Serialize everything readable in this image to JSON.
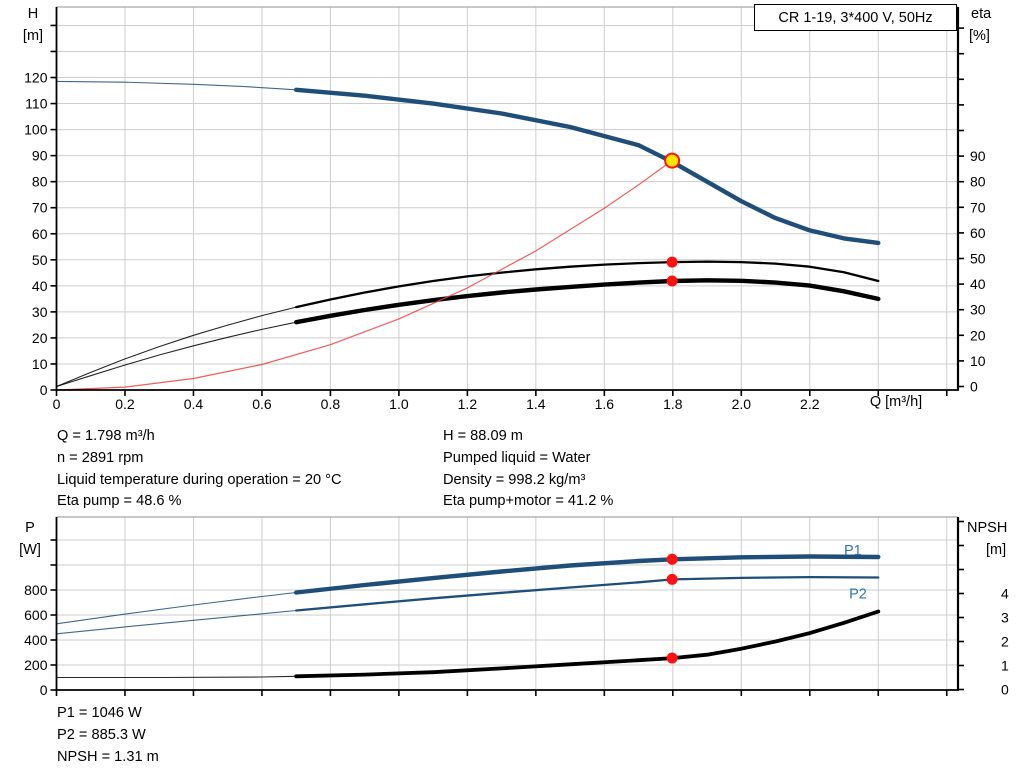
{
  "title_box": {
    "label": "CR 1-19, 3*400 V, 50Hz"
  },
  "operating_point_info": {
    "left": [
      "Q = 1.798 m³/h",
      "n = 2891 rpm",
      "Liquid temperature during operation = 20 °C",
      "Eta pump = 48.6 %"
    ],
    "right": [
      "H = 88.09 m",
      "Pumped liquid = Water",
      "Density = 998.2 kg/m³",
      "Eta pump+motor = 41.2 %"
    ]
  },
  "power_info": [
    "P1 = 1046 W",
    "P2 = 885.3 W",
    "NPSH = 1.31 m"
  ],
  "colors": {
    "curve_blue": "#1F4E79",
    "curve_black": "#000000",
    "system_red": "#EE4040",
    "marker_red": "#FF1111",
    "duty_yellow": "#FFE600",
    "grid": "#CDCDCD",
    "border_gray": "#A6A6A6",
    "label_blue": "#2E74B5"
  },
  "chart_data": [
    {
      "type": "line",
      "title": "CR 1-19, 3*400 V, 50Hz",
      "x_axis": {
        "label": "Q [m³/h]",
        "min": 0,
        "max": 2.63,
        "grid_step": 0.2,
        "tick_labels": [
          "0",
          "0.2",
          "0.4",
          "0.6",
          "0.8",
          "1.0",
          "1.2",
          "1.4",
          "1.6",
          "1.8",
          "2.0",
          "2.2"
        ]
      },
      "y_left": {
        "label": [
          "H",
          "[m]"
        ],
        "min": 0,
        "max": 147,
        "step": 10,
        "label_max": 120
      },
      "y_right": {
        "label": [
          "eta",
          "[%]"
        ],
        "min": 0,
        "max": 147,
        "step": 10,
        "label_max": 90
      },
      "grid": true,
      "series": [
        {
          "name": "head-curve",
          "axis": "left",
          "color_key": "curve_blue",
          "thin_until": 0.7,
          "thick_width": 4.4,
          "points": [
            [
              0,
              118.5
            ],
            [
              0.2,
              118.2
            ],
            [
              0.4,
              117.4
            ],
            [
              0.55,
              116.5
            ],
            [
              0.7,
              115.3
            ],
            [
              0.9,
              113.0
            ],
            [
              1.1,
              110.0
            ],
            [
              1.3,
              106.2
            ],
            [
              1.5,
              101.0
            ],
            [
              1.7,
              94.0
            ],
            [
              1.8,
              87.5
            ],
            [
              1.9,
              80.0
            ],
            [
              2.0,
              72.5
            ],
            [
              2.1,
              66.0
            ],
            [
              2.2,
              61.3
            ],
            [
              2.3,
              58.2
            ],
            [
              2.4,
              56.5
            ]
          ]
        },
        {
          "name": "eta-pump-curve",
          "axis": "right",
          "color_key": "curve_black",
          "thin_until": 0.7,
          "thick_width": 2.3,
          "points": [
            [
              0,
              0
            ],
            [
              0.1,
              5.5
            ],
            [
              0.2,
              10.8
            ],
            [
              0.3,
              15.6
            ],
            [
              0.4,
              20.0
            ],
            [
              0.5,
              24.0
            ],
            [
              0.6,
              27.7
            ],
            [
              0.7,
              31.0
            ],
            [
              0.8,
              34.0
            ],
            [
              0.9,
              36.7
            ],
            [
              1.0,
              39.1
            ],
            [
              1.1,
              41.2
            ],
            [
              1.2,
              43.0
            ],
            [
              1.3,
              44.5
            ],
            [
              1.4,
              45.8
            ],
            [
              1.5,
              46.8
            ],
            [
              1.6,
              47.6
            ],
            [
              1.7,
              48.2
            ],
            [
              1.8,
              48.6
            ],
            [
              1.9,
              48.8
            ],
            [
              2.0,
              48.6
            ],
            [
              2.1,
              48.0
            ],
            [
              2.2,
              46.8
            ],
            [
              2.3,
              44.6
            ],
            [
              2.4,
              41.2
            ]
          ]
        },
        {
          "name": "eta-pump-motor-curve",
          "axis": "right",
          "color_key": "curve_black",
          "thin_until": 0.7,
          "thick_width": 4.4,
          "points": [
            [
              0,
              0
            ],
            [
              0.1,
              4.2
            ],
            [
              0.2,
              8.4
            ],
            [
              0.3,
              12.3
            ],
            [
              0.4,
              15.9
            ],
            [
              0.5,
              19.2
            ],
            [
              0.6,
              22.3
            ],
            [
              0.7,
              25.1
            ],
            [
              0.8,
              27.6
            ],
            [
              0.9,
              29.9
            ],
            [
              1.0,
              31.9
            ],
            [
              1.1,
              33.7
            ],
            [
              1.2,
              35.3
            ],
            [
              1.3,
              36.7
            ],
            [
              1.4,
              37.9
            ],
            [
              1.5,
              38.9
            ],
            [
              1.6,
              39.8
            ],
            [
              1.7,
              40.6
            ],
            [
              1.8,
              41.2
            ],
            [
              1.9,
              41.5
            ],
            [
              2.0,
              41.3
            ],
            [
              2.1,
              40.6
            ],
            [
              2.2,
              39.4
            ],
            [
              2.3,
              37.2
            ],
            [
              2.4,
              34.2
            ]
          ]
        },
        {
          "name": "system-curve",
          "axis": "left",
          "color_key": "system_red",
          "thin_until": 99,
          "thick_width": 1.2,
          "points": [
            [
              0,
              0
            ],
            [
              0.2,
              1.1
            ],
            [
              0.4,
              4.4
            ],
            [
              0.6,
              9.8
            ],
            [
              0.8,
              17.4
            ],
            [
              1.0,
              27.3
            ],
            [
              1.2,
              39.2
            ],
            [
              1.4,
              53.4
            ],
            [
              1.6,
              69.8
            ],
            [
              1.7,
              78.8
            ],
            [
              1.798,
              88.09
            ]
          ]
        }
      ],
      "duty_point": {
        "q": 1.798,
        "h": 88.09
      },
      "markers": [
        {
          "name": "eta-pump-marker",
          "q": 1.798,
          "axis": "right",
          "value": 48.6
        },
        {
          "name": "eta-pump-motor-marker",
          "q": 1.798,
          "axis": "right",
          "value": 41.2
        }
      ]
    },
    {
      "type": "line",
      "x_axis": {
        "label": "",
        "min": 0,
        "max": 2.63,
        "grid_step": 0.2,
        "tick_labels": []
      },
      "y_left": {
        "label": [
          "P",
          "[W]"
        ],
        "min": 0,
        "max": 1380,
        "step": 200,
        "label_max": 800
      },
      "y_right": {
        "label": [
          "NPSH",
          "[m]"
        ],
        "min": 0,
        "max": 7,
        "step": 1,
        "label_max": 4
      },
      "grid": true,
      "series": [
        {
          "name": "p1-curve",
          "axis": "left",
          "color_key": "curve_blue",
          "thin_until": 0.7,
          "thick_width": 4.4,
          "points": [
            [
              0,
              530
            ],
            [
              0.2,
              607
            ],
            [
              0.4,
              680
            ],
            [
              0.6,
              748
            ],
            [
              0.7,
              780
            ],
            [
              0.9,
              840
            ],
            [
              1.1,
              895
            ],
            [
              1.3,
              948
            ],
            [
              1.5,
              996
            ],
            [
              1.7,
              1032
            ],
            [
              1.8,
              1046
            ],
            [
              2.0,
              1062
            ],
            [
              2.2,
              1068
            ],
            [
              2.4,
              1064
            ]
          ]
        },
        {
          "name": "p2-curve",
          "axis": "left",
          "color_key": "curve_blue",
          "thin_until": 0.7,
          "thick_width": 2.3,
          "points": [
            [
              0,
              450
            ],
            [
              0.2,
              505
            ],
            [
              0.4,
              558
            ],
            [
              0.6,
              610
            ],
            [
              0.7,
              636
            ],
            [
              0.9,
              686
            ],
            [
              1.1,
              734
            ],
            [
              1.3,
              778
            ],
            [
              1.5,
              820
            ],
            [
              1.7,
              862
            ],
            [
              1.8,
              885
            ],
            [
              2.0,
              897
            ],
            [
              2.2,
              903
            ],
            [
              2.4,
              900
            ]
          ]
        },
        {
          "name": "npsh-curve",
          "axis": "right",
          "color_key": "curve_black",
          "thin_until": 0.7,
          "thick_width": 3.8,
          "points": [
            [
              0,
              0.5
            ],
            [
              0.3,
              0.5
            ],
            [
              0.6,
              0.52
            ],
            [
              0.7,
              0.55
            ],
            [
              0.9,
              0.62
            ],
            [
              1.1,
              0.72
            ],
            [
              1.3,
              0.88
            ],
            [
              1.5,
              1.05
            ],
            [
              1.7,
              1.22
            ],
            [
              1.8,
              1.31
            ],
            [
              1.9,
              1.45
            ],
            [
              2.0,
              1.7
            ],
            [
              2.1,
              2.0
            ],
            [
              2.2,
              2.35
            ],
            [
              2.3,
              2.78
            ],
            [
              2.4,
              3.25
            ]
          ]
        }
      ],
      "curve_labels": [
        {
          "text": "P1",
          "q": 2.3,
          "axis": "left",
          "value": 1122
        },
        {
          "text": "P2",
          "q": 2.315,
          "axis": "left",
          "value": 772
        }
      ],
      "markers": [
        {
          "name": "p1-marker",
          "q": 1.798,
          "axis": "left",
          "value": 1046
        },
        {
          "name": "p2-marker",
          "q": 1.798,
          "axis": "left",
          "value": 885.3
        },
        {
          "name": "npsh-marker",
          "q": 1.798,
          "axis": "right",
          "value": 1.31
        }
      ]
    }
  ]
}
